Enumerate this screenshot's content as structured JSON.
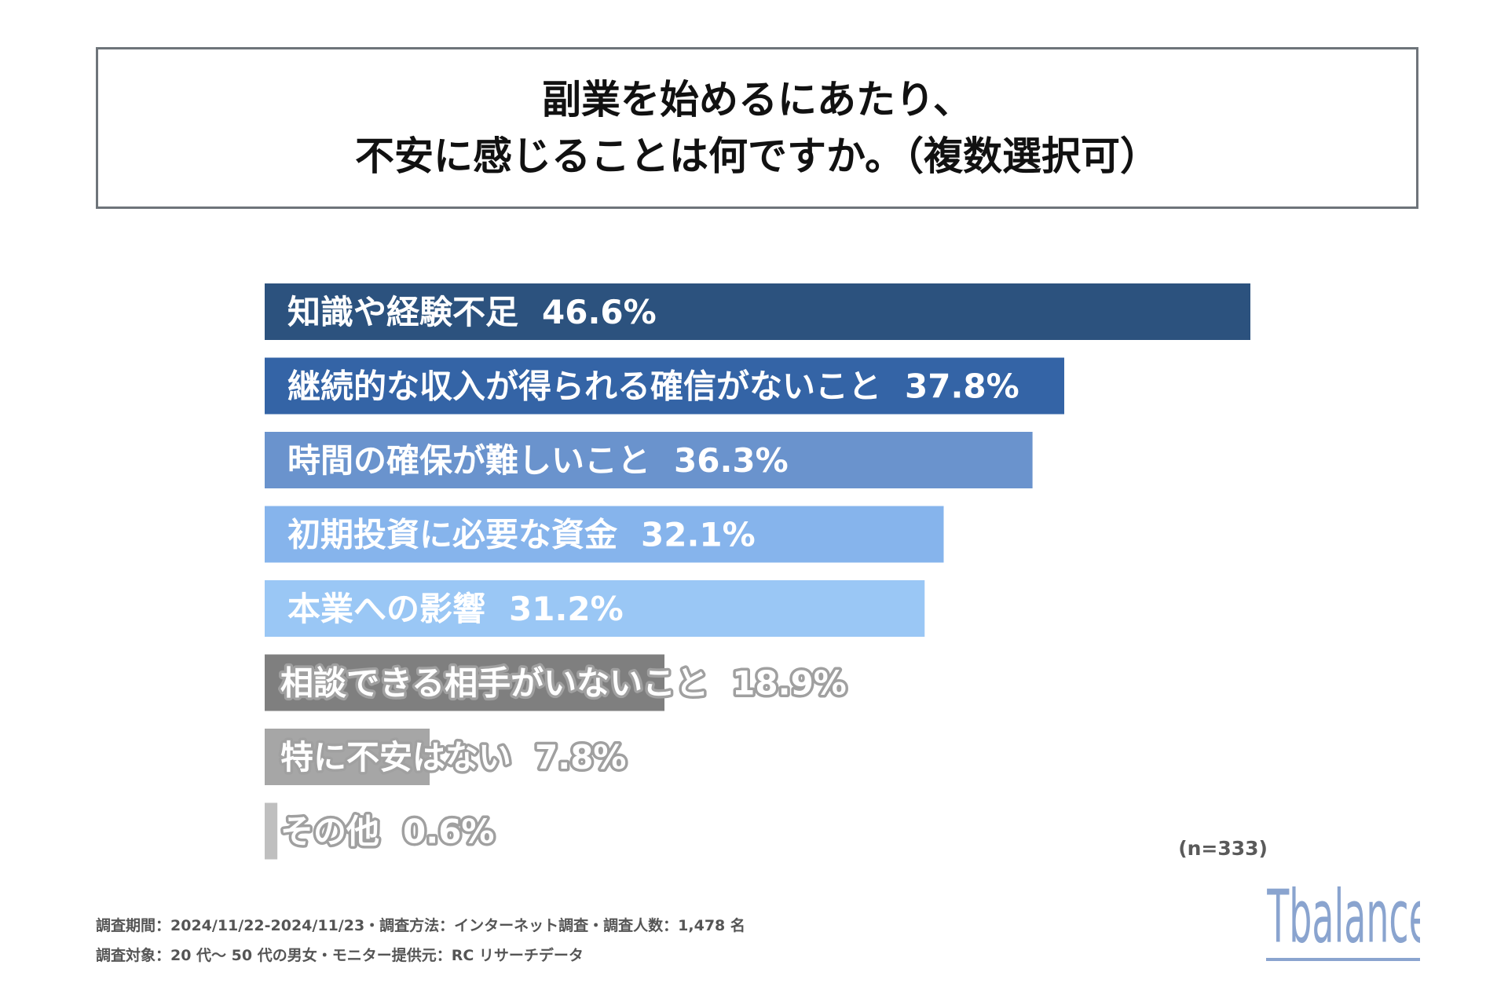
{
  "title": {
    "line1": "副業を始めるにあたり、",
    "line2": "不安に感じることは何ですか。（複数選択可）"
  },
  "chart_data": {
    "type": "bar",
    "orientation": "horizontal",
    "title": "副業を始めるにあたり、不安に感じることは何ですか。（複数選択可）",
    "unit": "%",
    "categories": [
      "知識や経験不足",
      "継続的な収入が得られる確信がないこと",
      "時間の確保が難しいこと",
      "初期投資に必要な資金",
      "本業への影響",
      "相談できる相手がいないこと",
      "特に不安はない",
      "その他"
    ],
    "values": [
      46.6,
      37.8,
      36.3,
      32.1,
      31.2,
      18.9,
      7.8,
      0.6
    ],
    "value_labels": [
      "46.6%",
      "37.8%",
      "36.3%",
      "32.1%",
      "31.2%",
      "18.9%",
      "7.8%",
      "0.6%"
    ],
    "bar_colors": [
      "#2c527e",
      "#3464a6",
      "#6a93cd",
      "#86b4ec",
      "#9ac7f5",
      "#7f7f7f",
      "#a6a6a6",
      "#bfbfbf"
    ],
    "xlim": [
      0,
      46.6
    ],
    "grid": false,
    "legend": "none",
    "sample_size": "(n=333)"
  },
  "footnotes": {
    "line1": "調査期間：2024/11/22-2024/11/23・調査方法：インターネット調査・調査人数：1,478 名",
    "line2": "調査対象：20 代～ 50 代の男女・モニター提供元：RC リサーチデータ"
  },
  "logo": {
    "text": "Tbalance",
    "color": "#8aa4cf"
  }
}
